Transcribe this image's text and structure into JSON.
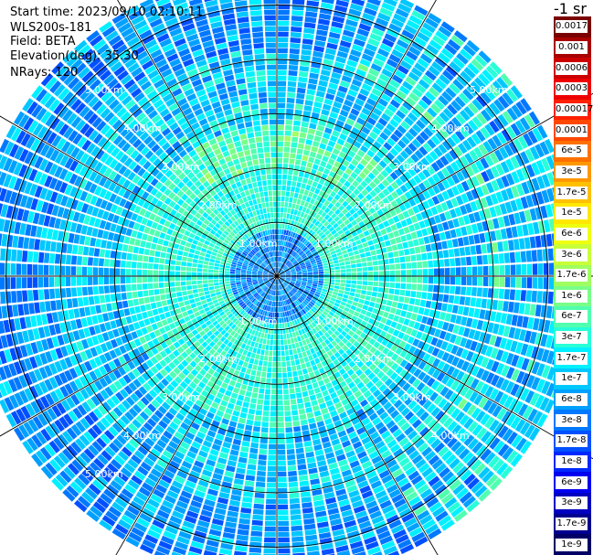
{
  "header": {
    "start_time": "Start time: 2023/09/10 02:10:11",
    "device": "WLS200s-181",
    "field": "Field: BETA",
    "elevation": "Elevation(deg): 35.30",
    "nrays": "NRays: 120"
  },
  "colorbar": {
    "title": "-1 sr",
    "levels": [
      {
        "label": "0.0017",
        "color": "#7a0000"
      },
      {
        "label": "0.001",
        "color": "#a80000"
      },
      {
        "label": "0.0006",
        "color": "#cc0000"
      },
      {
        "label": "0.0003",
        "color": "#ee0000"
      },
      {
        "label": "0.00017",
        "color": "#ff2000"
      },
      {
        "label": "0.0001",
        "color": "#ff4800"
      },
      {
        "label": "6e-5",
        "color": "#ff7000"
      },
      {
        "label": "3e-5",
        "color": "#ff9800"
      },
      {
        "label": "1.7e-5",
        "color": "#ffc000"
      },
      {
        "label": "1e-5",
        "color": "#ffe800"
      },
      {
        "label": "6e-6",
        "color": "#eeff10"
      },
      {
        "label": "3e-6",
        "color": "#c8ff38"
      },
      {
        "label": "1.7e-6",
        "color": "#a0ff60"
      },
      {
        "label": "1e-6",
        "color": "#78ff88"
      },
      {
        "label": "6e-7",
        "color": "#50ffb0"
      },
      {
        "label": "3e-7",
        "color": "#28ffd8"
      },
      {
        "label": "1.7e-7",
        "color": "#00f0ff"
      },
      {
        "label": "1e-7",
        "color": "#00c8ff"
      },
      {
        "label": "6e-8",
        "color": "#00a0ff"
      },
      {
        "label": "3e-8",
        "color": "#0078ff"
      },
      {
        "label": "1.7e-8",
        "color": "#0050ff"
      },
      {
        "label": "1e-8",
        "color": "#0028ff"
      },
      {
        "label": "6e-9",
        "color": "#0000f0"
      },
      {
        "label": "3e-9",
        "color": "#0000c0"
      },
      {
        "label": "1.7e-9",
        "color": "#000090"
      },
      {
        "label": "1e-9",
        "color": "#000066"
      }
    ]
  },
  "range_rings": [
    {
      "label": "1.00km"
    },
    {
      "label": "2.00km"
    },
    {
      "label": "3.00km"
    },
    {
      "label": "4.00km"
    },
    {
      "label": "5.00km"
    }
  ],
  "ring_label_text": {
    "r1": "1.00km",
    "r2": "2.00km",
    "r3": "3.00km",
    "r4": "4.00km",
    "r5": "5.00km"
  },
  "ppi": {
    "n_rays": 120,
    "palette": [
      "#0000c0",
      "#0028ff",
      "#0050ff",
      "#0078ff",
      "#00a0ff",
      "#00c8ff",
      "#00f0ff",
      "#28ffd8",
      "#50ffb0",
      "#78ff88",
      "#a0ff60",
      "#c8ff38"
    ]
  }
}
